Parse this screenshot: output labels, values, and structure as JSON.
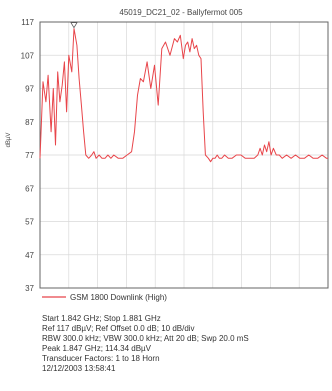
{
  "chart_data": {
    "type": "line",
    "title": "45019_DC21_02 - Ballyfermot 005",
    "xlabel": "",
    "ylabel": "dBµV",
    "ylim": [
      37,
      117
    ],
    "xlim": [
      1.842,
      1.881
    ],
    "y_ticks": [
      "117",
      "107",
      "97",
      "87",
      "77",
      "67",
      "57",
      "47",
      "37"
    ],
    "y_tick_values": [
      117,
      107,
      97,
      87,
      77,
      67,
      57,
      47,
      37
    ],
    "grid": true,
    "grid_x_divisions": 10,
    "legend_position": "bottom",
    "series_color": "#e8454a",
    "series": [
      {
        "name": "GSM 1800 Downlink (High)",
        "x": [
          1.842,
          1.8424,
          1.8428,
          1.8431,
          1.8435,
          1.8438,
          1.8441,
          1.8444,
          1.8447,
          1.845,
          1.8453,
          1.8456,
          1.8459,
          1.8463,
          1.8466,
          1.847,
          1.8473,
          1.8476,
          1.8479,
          1.8482,
          1.8486,
          1.849,
          1.8493,
          1.8496,
          1.85,
          1.8504,
          1.8508,
          1.8512,
          1.8516,
          1.852,
          1.8526,
          1.8532,
          1.8538,
          1.8544,
          1.8548,
          1.8552,
          1.8556,
          1.856,
          1.8565,
          1.857,
          1.8575,
          1.858,
          1.8585,
          1.859,
          1.8596,
          1.8602,
          1.8606,
          1.861,
          1.8614,
          1.8617,
          1.862,
          1.8623,
          1.8626,
          1.8629,
          1.8632,
          1.8635,
          1.8638,
          1.8641,
          1.8644,
          1.8648,
          1.8651,
          1.8654,
          1.8657,
          1.866,
          1.8663,
          1.8666,
          1.867,
          1.8675,
          1.868,
          1.8686,
          1.8692,
          1.8698,
          1.8704,
          1.871,
          1.8715,
          1.8718,
          1.8721,
          1.8724,
          1.8727,
          1.873,
          1.8733,
          1.8736,
          1.874,
          1.8744,
          1.8748,
          1.8754,
          1.876,
          1.8766,
          1.8772,
          1.8778,
          1.8784,
          1.879,
          1.8796,
          1.8802,
          1.8808,
          1.881
        ],
        "values": [
          76,
          99,
          93,
          101,
          84,
          97,
          80,
          102,
          93,
          98,
          105,
          90,
          107,
          102,
          115,
          110,
          100,
          92,
          84,
          77,
          76,
          77,
          78,
          76,
          77,
          76,
          76,
          77,
          76,
          77,
          76,
          76,
          77,
          78,
          84,
          95,
          100,
          99,
          105,
          97,
          104,
          92,
          109,
          111,
          107,
          112,
          111,
          113,
          106,
          110,
          111,
          108,
          112,
          109,
          110,
          107,
          106,
          90,
          77,
          76,
          75,
          76,
          76,
          77,
          76,
          76,
          77,
          76,
          76,
          77,
          77,
          76,
          76,
          76,
          77,
          79,
          77,
          80,
          78,
          81,
          77,
          79,
          77,
          77,
          76,
          77,
          76,
          77,
          76,
          76,
          77,
          76,
          76,
          77,
          76,
          76
        ]
      }
    ]
  },
  "info_lines": [
    "Start 1.842 GHz; Stop 1.881 GHz",
    "Ref 117 dBµV; Ref Offset 0.0 dB; 10 dB/div",
    "RBW 300.0 kHz; VBW 300.0 kHz; Att 20 dB; Swp 20.0 mS",
    "Peak 1.847 GHz; 114.34 dBµV",
    "Transducer Factors: 1 to 18 Horn",
    "12/12/2003 13:58:41"
  ]
}
